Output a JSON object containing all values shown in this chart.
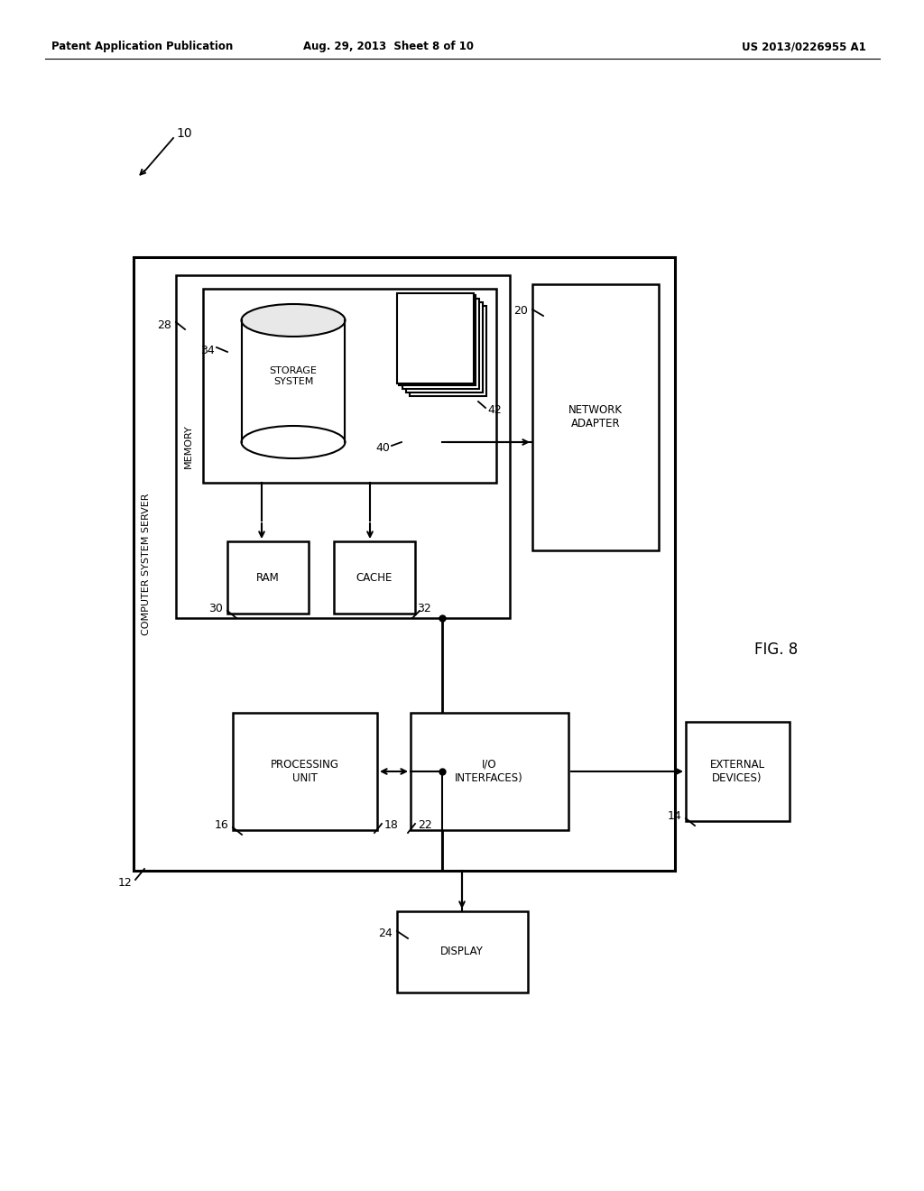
{
  "bg_color": "#ffffff",
  "header_left": "Patent Application Publication",
  "header_mid": "Aug. 29, 2013  Sheet 8 of 10",
  "header_right": "US 2013/0226955 A1",
  "fig_label": "FIG. 8",
  "ref_10": "10",
  "ref_12": "12",
  "ref_14": "14",
  "ref_16": "16",
  "ref_18": "18",
  "ref_20": "20",
  "ref_22": "22",
  "ref_24": "24",
  "ref_28": "28",
  "ref_30": "30",
  "ref_32": "32",
  "ref_34": "34",
  "ref_40": "40",
  "ref_42": "42",
  "label_computer_server": "COMPUTER SYSTEM SERVER",
  "label_memory": "MEMORY",
  "label_storage_system": "STORAGE\nSYSTEM",
  "label_ram": "RAM",
  "label_cache": "CACHE",
  "label_network_adapter": "NETWORK\nADAPTER",
  "label_processing_unit": "PROCESSING\nUNIT",
  "label_io_interfaces": "I/O\nINTERFACES)",
  "label_external_devices": "EXTERNAL\nDEVICES)",
  "label_display": "DISPLAY"
}
